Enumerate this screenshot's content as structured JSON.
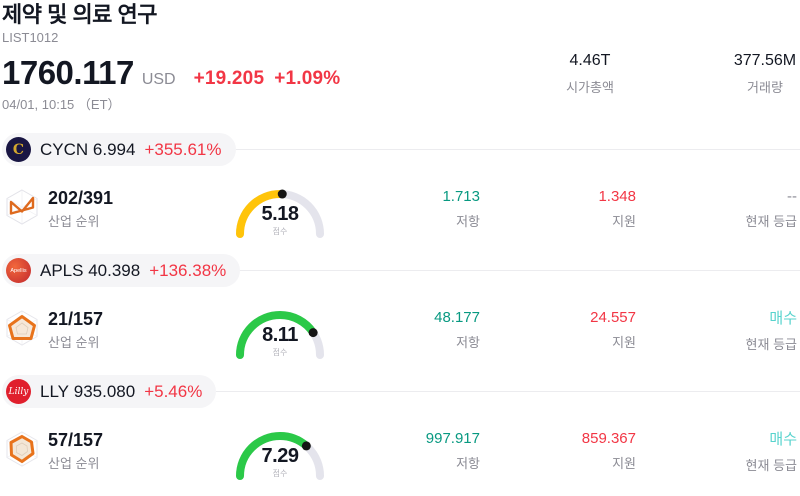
{
  "header": {
    "title": "제약 및 의료 연구",
    "subtitle": "LIST1012",
    "price": "1760.117",
    "currency": "USD",
    "change_abs": "+19.205",
    "change_pct": "+1.09%",
    "timestamp": "04/01, 10:15 （ET）",
    "market_cap": "4.46T",
    "market_cap_label": "시가총액",
    "volume": "377.56M",
    "volume_label": "거래량"
  },
  "colors": {
    "change_red": "#F23645",
    "resistance_teal": "#089981",
    "support_red": "#F23645",
    "rating_buy_teal": "#57D3CD",
    "rating_none_gray": "#8B8B94",
    "gauge_track": "#E4E4EC",
    "gauge_yellow": "#FFC40A",
    "gauge_green": "#2BC948",
    "gauge_dot": "#141414"
  },
  "rows": [
    {
      "ticker": "CYCN",
      "price": "6.994",
      "change": "+355.61%",
      "logo_text": "C",
      "rank": "202/391",
      "rank_label": "산업 순위",
      "score": "5.18",
      "score_label": "점수",
      "gauge_color": "#FFC40A",
      "resistance": "1.713",
      "resistance_label": "저항",
      "support": "1.348",
      "support_label": "지원",
      "rating": "--",
      "rating_label": "현재 등급",
      "rating_color": "#8B8B94"
    },
    {
      "ticker": "APLS",
      "price": "40.398",
      "change": "+136.38%",
      "logo_text": "Apellis",
      "rank": "21/157",
      "rank_label": "산업 순위",
      "score": "8.11",
      "score_label": "점수",
      "gauge_color": "#2BC948",
      "resistance": "48.177",
      "resistance_label": "저항",
      "support": "24.557",
      "support_label": "지원",
      "rating": "매수",
      "rating_label": "현재 등급",
      "rating_color": "#57D3CD"
    },
    {
      "ticker": "LLY",
      "price": "935.080",
      "change": "+5.46%",
      "logo_text": "Lilly",
      "rank": "57/157",
      "rank_label": "산업 순위",
      "score": "7.29",
      "score_label": "점수",
      "gauge_color": "#2BC948",
      "resistance": "997.917",
      "resistance_label": "저항",
      "support": "859.367",
      "support_label": "지원",
      "rating": "매수",
      "rating_label": "현재 등급",
      "rating_color": "#57D3CD"
    }
  ]
}
